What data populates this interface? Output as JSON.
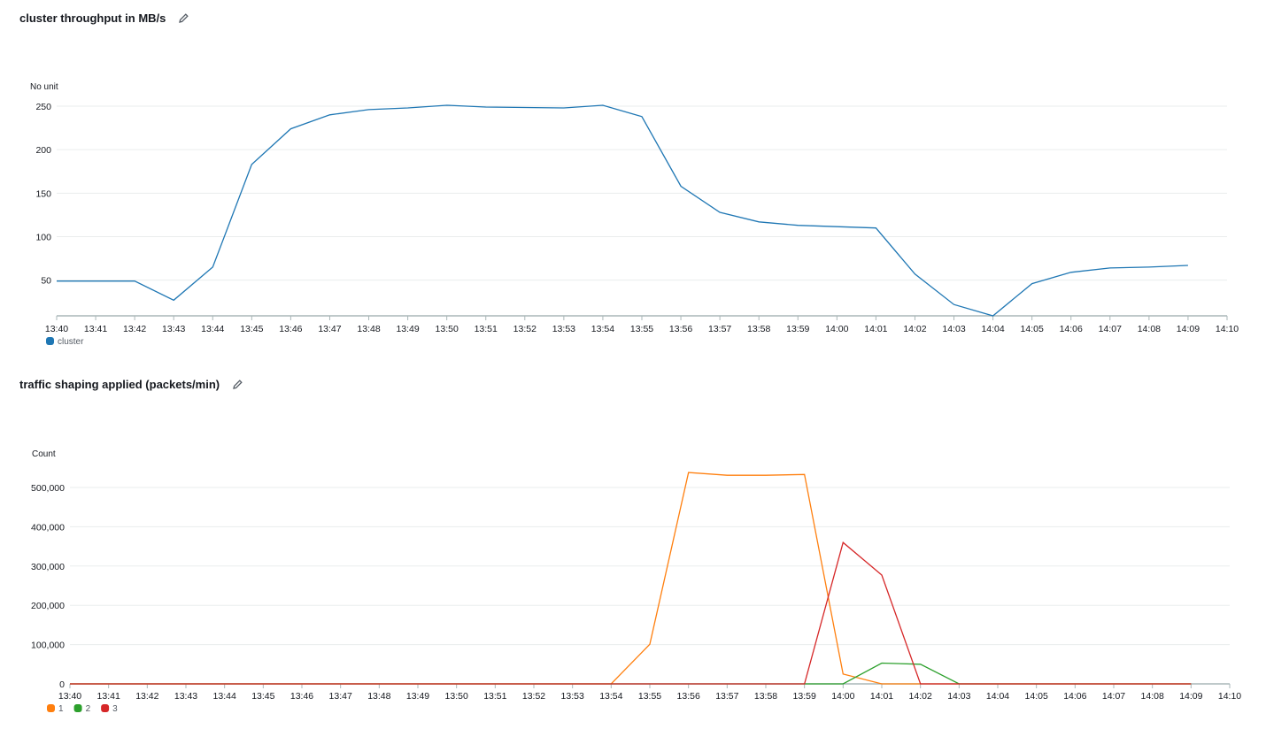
{
  "chart_data": [
    {
      "type": "line",
      "title": "cluster throughput in MB/s",
      "ylabel": "No unit",
      "x": [
        "13:40",
        "13:41",
        "13:42",
        "13:43",
        "13:44",
        "13:45",
        "13:46",
        "13:47",
        "13:48",
        "13:49",
        "13:50",
        "13:51",
        "13:52",
        "13:53",
        "13:54",
        "13:55",
        "13:56",
        "13:57",
        "13:58",
        "13:59",
        "14:00",
        "14:01",
        "14:02",
        "14:03",
        "14:04",
        "14:05",
        "14:06",
        "14:07",
        "14:08",
        "14:09"
      ],
      "xticks": [
        "13:40",
        "13:41",
        "13:42",
        "13:43",
        "13:44",
        "13:45",
        "13:46",
        "13:47",
        "13:48",
        "13:49",
        "13:50",
        "13:51",
        "13:52",
        "13:53",
        "13:54",
        "13:55",
        "13:56",
        "13:57",
        "13:58",
        "13:59",
        "14:00",
        "14:01",
        "14:02",
        "14:03",
        "14:04",
        "14:05",
        "14:06",
        "14:07",
        "14:08",
        "14:09",
        "14:10"
      ],
      "yticks": [
        "50",
        "100",
        "150",
        "200",
        "250"
      ],
      "ytick_values": [
        50,
        100,
        150,
        200,
        250
      ],
      "ylim": [
        9,
        250
      ],
      "grid": true,
      "legend_position": "bottom-left",
      "series": [
        {
          "name": "cluster",
          "color": "#1f77b4",
          "values": [
            49,
            49,
            49,
            27,
            65,
            183,
            224,
            240,
            246,
            248,
            251,
            249,
            248.5,
            248,
            251,
            238,
            158,
            128,
            117,
            113,
            111.5,
            110,
            57,
            22,
            9,
            46,
            59,
            64,
            65,
            67
          ]
        }
      ]
    },
    {
      "type": "line",
      "title": "traffic shaping applied (packets/min)",
      "ylabel": "Count",
      "x": [
        "13:40",
        "13:41",
        "13:42",
        "13:43",
        "13:44",
        "13:45",
        "13:46",
        "13:47",
        "13:48",
        "13:49",
        "13:50",
        "13:51",
        "13:52",
        "13:53",
        "13:54",
        "13:55",
        "13:56",
        "13:57",
        "13:58",
        "13:59",
        "14:00",
        "14:01",
        "14:02",
        "14:03",
        "14:04",
        "14:05",
        "14:06",
        "14:07",
        "14:08",
        "14:09"
      ],
      "xticks": [
        "13:40",
        "13:41",
        "13:42",
        "13:43",
        "13:44",
        "13:45",
        "13:46",
        "13:47",
        "13:48",
        "13:49",
        "13:50",
        "13:51",
        "13:52",
        "13:53",
        "13:54",
        "13:55",
        "13:56",
        "13:57",
        "13:58",
        "13:59",
        "14:00",
        "14:01",
        "14:02",
        "14:03",
        "14:04",
        "14:05",
        "14:06",
        "14:07",
        "14:08",
        "14:09",
        "14:10"
      ],
      "yticks": [
        "0",
        "100,000",
        "200,000",
        "300,000",
        "400,000",
        "500,000"
      ],
      "ytick_values": [
        0,
        100000,
        200000,
        300000,
        400000,
        500000
      ],
      "ylim": [
        0,
        500000
      ],
      "grid": true,
      "legend_position": "bottom-left",
      "series": [
        {
          "name": "1",
          "color": "#ff7f0e",
          "values": [
            0,
            0,
            0,
            0,
            0,
            0,
            0,
            0,
            0,
            0,
            0,
            0,
            0,
            0,
            0,
            101000,
            538000,
            531000,
            531000,
            533000,
            25000,
            0,
            0,
            0,
            0,
            0,
            0,
            0,
            0,
            0
          ]
        },
        {
          "name": "2",
          "color": "#2ca02c",
          "values": [
            0,
            0,
            0,
            0,
            0,
            0,
            0,
            0,
            0,
            0,
            0,
            0,
            0,
            0,
            0,
            0,
            0,
            0,
            0,
            0,
            0,
            53000,
            50000,
            0,
            0,
            0,
            0,
            0,
            0,
            0
          ]
        },
        {
          "name": "3",
          "color": "#d62728",
          "values": [
            0,
            0,
            0,
            0,
            0,
            0,
            0,
            0,
            0,
            0,
            0,
            0,
            0,
            0,
            0,
            0,
            0,
            0,
            0,
            0,
            360000,
            277000,
            0,
            0,
            0,
            0,
            0,
            0,
            0,
            0
          ]
        }
      ]
    }
  ]
}
